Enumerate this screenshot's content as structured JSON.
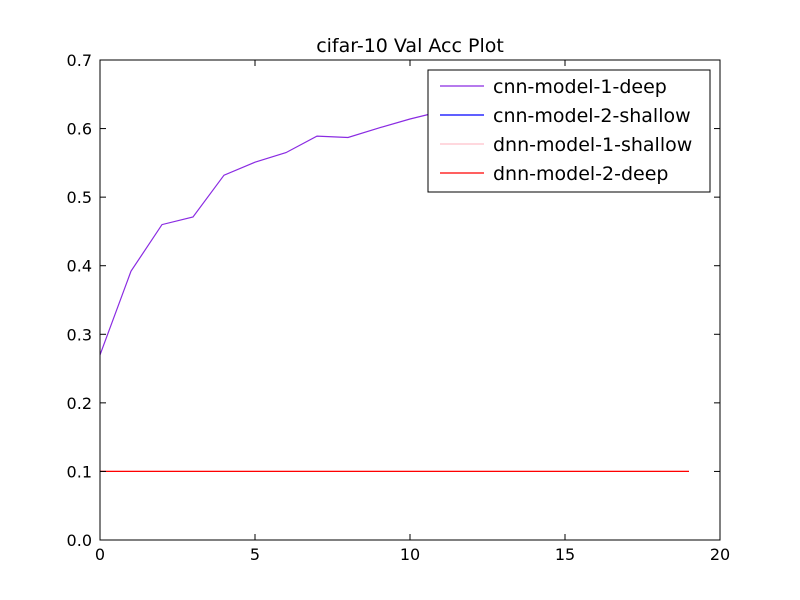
{
  "chart_data": {
    "type": "line",
    "title": "cifar-10 Val Acc Plot",
    "xlabel": "",
    "ylabel": "",
    "xlim": [
      0,
      20
    ],
    "ylim": [
      0.0,
      0.7
    ],
    "xticks": [
      "0",
      "5",
      "10",
      "15",
      "20"
    ],
    "yticks": [
      "0.0",
      "0.1",
      "0.2",
      "0.3",
      "0.4",
      "0.5",
      "0.6",
      "0.7"
    ],
    "grid": false,
    "legend_position": "top-right",
    "series": [
      {
        "name": "cnn-model-1-deep",
        "color": "#8a2be2",
        "x": [
          0,
          1,
          2,
          3,
          4,
          5,
          6,
          7,
          8,
          9,
          10,
          11,
          12,
          13,
          14,
          15,
          16,
          17,
          18,
          19
        ],
        "y": [
          0.27,
          0.392,
          0.46,
          0.471,
          0.532,
          0.551,
          0.565,
          0.589,
          0.587,
          0.601,
          0.614,
          0.625,
          0.632,
          0.641,
          0.648,
          0.653,
          0.658,
          0.662,
          0.667,
          0.671
        ]
      },
      {
        "name": "cnn-model-2-shallow",
        "color": "#0000ff",
        "x": [],
        "y": []
      },
      {
        "name": "dnn-model-1-shallow",
        "color": "#ffc0cb",
        "x": [
          0,
          1,
          2,
          3,
          4,
          5,
          6,
          7,
          8,
          9,
          10,
          11,
          12,
          13,
          14,
          15,
          16,
          17,
          18,
          19
        ],
        "y": [
          0.1,
          0.1,
          0.1,
          0.1,
          0.1,
          0.1,
          0.1,
          0.1,
          0.1,
          0.1,
          0.1,
          0.1,
          0.1,
          0.1,
          0.1,
          0.1,
          0.1,
          0.1,
          0.1,
          0.1
        ]
      },
      {
        "name": "dnn-model-2-deep",
        "color": "#ff0000",
        "x": [
          0,
          1,
          2,
          3,
          4,
          5,
          6,
          7,
          8,
          9,
          10,
          11,
          12,
          13,
          14,
          15,
          16,
          17,
          18,
          19
        ],
        "y": [
          0.1,
          0.1,
          0.1,
          0.1,
          0.1,
          0.1,
          0.1,
          0.1,
          0.1,
          0.1,
          0.1,
          0.1,
          0.1,
          0.1,
          0.1,
          0.1,
          0.1,
          0.1,
          0.1,
          0.1
        ]
      }
    ]
  }
}
